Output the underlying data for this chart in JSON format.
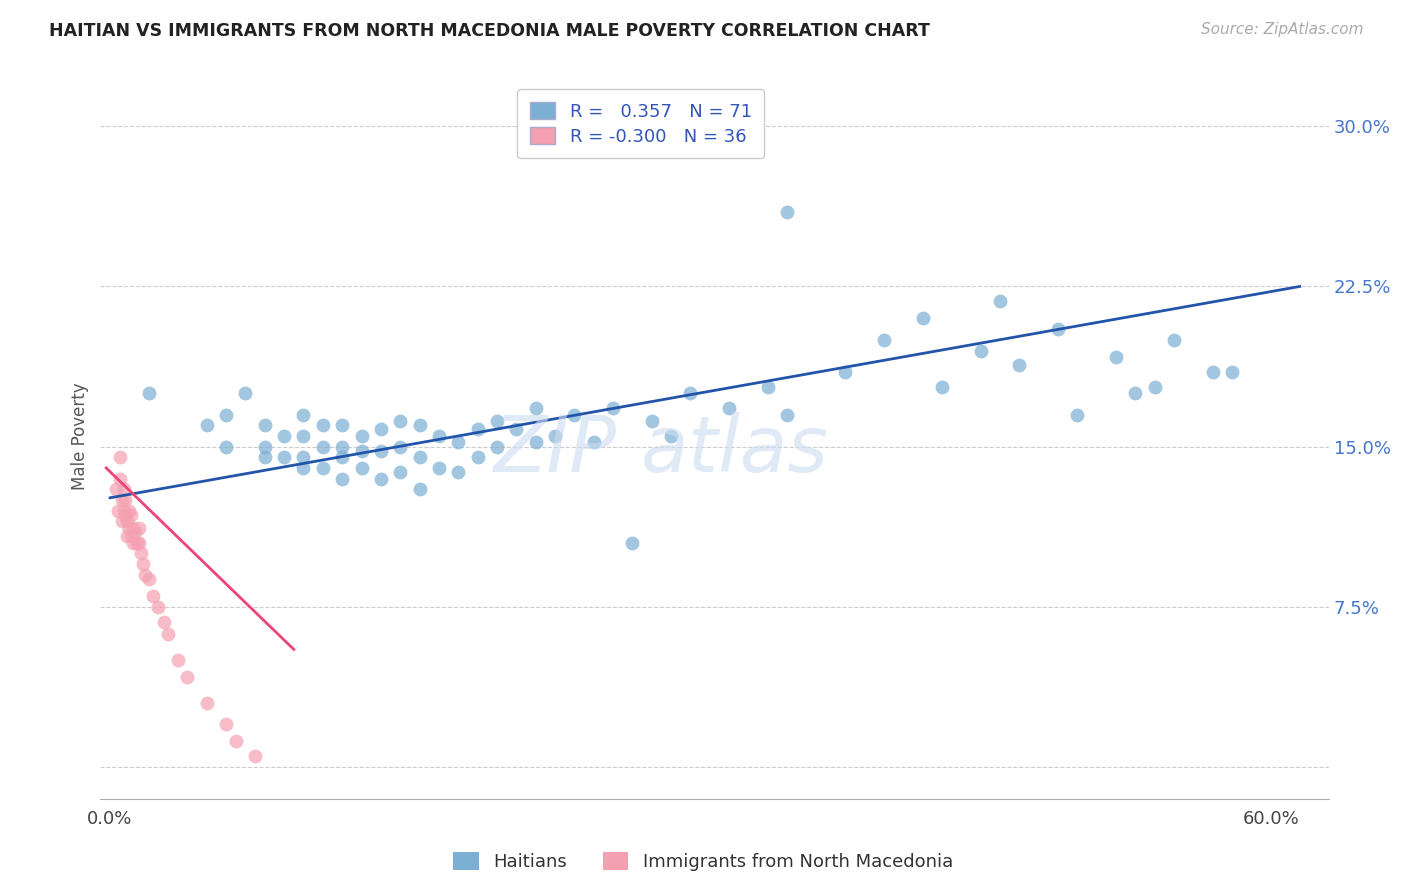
{
  "title": "HAITIAN VS IMMIGRANTS FROM NORTH MACEDONIA MALE POVERTY CORRELATION CHART",
  "source": "Source: ZipAtlas.com",
  "ylabel": "Male Poverty",
  "y_ticks": [
    0.0,
    0.075,
    0.15,
    0.225,
    0.3
  ],
  "y_tick_labels": [
    "",
    "7.5%",
    "15.0%",
    "22.5%",
    "30.0%"
  ],
  "xlim": [
    -0.005,
    0.63
  ],
  "ylim": [
    -0.015,
    0.325
  ],
  "color_blue": "#7BAFD4",
  "color_pink": "#F4A0B0",
  "color_line_blue": "#2255AA",
  "color_line_pink": "#EE4477",
  "color_ytick": "#4477CC",
  "watermark": "ZIPatlas",
  "blue_line_x": [
    0.0,
    0.615
  ],
  "blue_line_y": [
    0.126,
    0.225
  ],
  "pink_line_x": [
    -0.002,
    0.095
  ],
  "pink_line_y": [
    0.14,
    0.055
  ],
  "haitians_x": [
    0.02,
    0.05,
    0.06,
    0.06,
    0.07,
    0.08,
    0.08,
    0.08,
    0.09,
    0.09,
    0.1,
    0.1,
    0.1,
    0.1,
    0.11,
    0.11,
    0.11,
    0.12,
    0.12,
    0.12,
    0.12,
    0.13,
    0.13,
    0.13,
    0.14,
    0.14,
    0.14,
    0.15,
    0.15,
    0.15,
    0.16,
    0.16,
    0.16,
    0.17,
    0.17,
    0.18,
    0.18,
    0.19,
    0.19,
    0.2,
    0.2,
    0.21,
    0.22,
    0.22,
    0.23,
    0.24,
    0.25,
    0.26,
    0.27,
    0.28,
    0.29,
    0.3,
    0.32,
    0.34,
    0.35,
    0.38,
    0.4,
    0.43,
    0.45,
    0.47,
    0.5,
    0.52,
    0.54,
    0.55,
    0.57,
    0.35,
    0.42,
    0.46,
    0.49,
    0.53,
    0.58
  ],
  "haitians_y": [
    0.175,
    0.16,
    0.15,
    0.165,
    0.175,
    0.145,
    0.15,
    0.16,
    0.145,
    0.155,
    0.14,
    0.145,
    0.155,
    0.165,
    0.14,
    0.15,
    0.16,
    0.135,
    0.145,
    0.15,
    0.16,
    0.14,
    0.148,
    0.155,
    0.135,
    0.148,
    0.158,
    0.138,
    0.15,
    0.162,
    0.13,
    0.145,
    0.16,
    0.14,
    0.155,
    0.138,
    0.152,
    0.145,
    0.158,
    0.15,
    0.162,
    0.158,
    0.152,
    0.168,
    0.155,
    0.165,
    0.152,
    0.168,
    0.105,
    0.162,
    0.155,
    0.175,
    0.168,
    0.178,
    0.165,
    0.185,
    0.2,
    0.178,
    0.195,
    0.188,
    0.165,
    0.192,
    0.178,
    0.2,
    0.185,
    0.26,
    0.21,
    0.218,
    0.205,
    0.175,
    0.185
  ],
  "macedonia_x": [
    0.003,
    0.004,
    0.005,
    0.005,
    0.006,
    0.006,
    0.007,
    0.007,
    0.008,
    0.008,
    0.009,
    0.009,
    0.01,
    0.01,
    0.011,
    0.011,
    0.012,
    0.012,
    0.013,
    0.014,
    0.015,
    0.015,
    0.016,
    0.017,
    0.018,
    0.02,
    0.022,
    0.025,
    0.028,
    0.03,
    0.035,
    0.04,
    0.05,
    0.06,
    0.065,
    0.075
  ],
  "macedonia_y": [
    0.13,
    0.12,
    0.145,
    0.135,
    0.125,
    0.115,
    0.13,
    0.12,
    0.125,
    0.118,
    0.115,
    0.108,
    0.12,
    0.112,
    0.118,
    0.108,
    0.112,
    0.105,
    0.11,
    0.105,
    0.112,
    0.105,
    0.1,
    0.095,
    0.09,
    0.088,
    0.08,
    0.075,
    0.068,
    0.062,
    0.05,
    0.042,
    0.03,
    0.02,
    0.012,
    0.005
  ]
}
